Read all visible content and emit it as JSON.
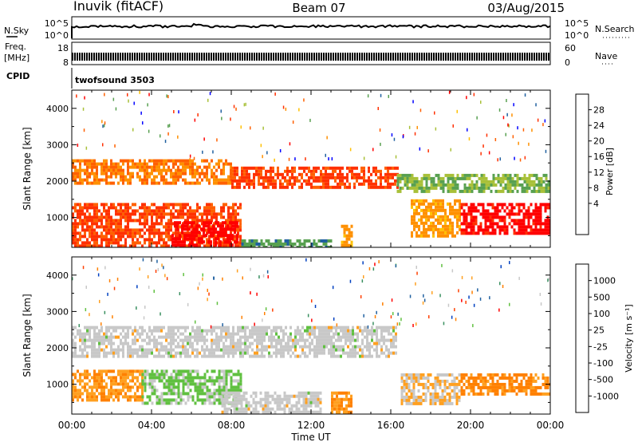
{
  "header": {
    "site": "Inuvik (fitACF)",
    "beam": "Beam 07",
    "date": "03/Aug/2015"
  },
  "nsky_panel": {
    "label": "N.Sky",
    "left_ticks": [
      "10^5",
      "10^0"
    ],
    "right_ticks": [
      "10^5",
      "10^0"
    ],
    "right_label": "N.Search"
  },
  "freq_panel": {
    "label_top": "Freq.",
    "label_unit": "[MHz]",
    "left_ticks": [
      "18",
      "8"
    ],
    "right_ticks": [
      "60",
      "0"
    ],
    "right_label": "Nave"
  },
  "cpid_panel": {
    "label": "CPID",
    "program": "twofsound 3503"
  },
  "colorbar_power": {
    "title": "Power [dB]",
    "ticks": [
      "28",
      "24",
      "20",
      "16",
      "12",
      "8",
      "4"
    ],
    "colors": [
      "#ff0000",
      "#ff3000",
      "#ff6000",
      "#ff9000",
      "#ffc000",
      "#a8c038",
      "#58a050",
      "#2060a0",
      "#0000ff"
    ]
  },
  "colorbar_velocity": {
    "title": "Velocity [m s⁻¹]",
    "ticks": [
      "1000",
      "500",
      "100",
      "25",
      "-25",
      "-100",
      "-500",
      "-1000"
    ],
    "colors": [
      "#0040c0",
      "#2060a0",
      "#3a9060",
      "#60c040",
      "#c8c8c8",
      "#ffa020",
      "#ff8000",
      "#ff4000",
      "#ff0000"
    ]
  },
  "x_axis": {
    "label": "Time UT",
    "ticks": [
      "00:00",
      "04:00",
      "08:00",
      "12:00",
      "16:00",
      "20:00",
      "00:00"
    ]
  },
  "chart_data": [
    {
      "type": "heatmap",
      "title": "",
      "xlabel": "",
      "ylabel": "Slant Range [km]",
      "x_range_hours": [
        0,
        24
      ],
      "ylim": [
        180,
        4500
      ],
      "y_ticks": [
        "1000",
        "2000",
        "3000",
        "4000"
      ],
      "zlabel": "Power [dB]",
      "zlim": [
        0,
        30
      ],
      "regions": [
        {
          "t": [
            0.0,
            8.0
          ],
          "r": [
            1900,
            2600
          ],
          "v": 20
        },
        {
          "t": [
            8.0,
            16.3
          ],
          "r": [
            1800,
            2400
          ],
          "v": 24
        },
        {
          "t": [
            16.3,
            24.0
          ],
          "r": [
            1700,
            2200
          ],
          "v": 10
        },
        {
          "t": [
            0.0,
            8.5
          ],
          "r": [
            200,
            1400
          ],
          "v": 24
        },
        {
          "t": [
            5.0,
            8.3
          ],
          "r": [
            250,
            900
          ],
          "v": 29
        },
        {
          "t": [
            8.5,
            13.0
          ],
          "r": [
            200,
            400
          ],
          "v": 8
        },
        {
          "t": [
            13.5,
            14.0
          ],
          "r": [
            250,
            800
          ],
          "v": 18
        },
        {
          "t": [
            17.0,
            19.5
          ],
          "r": [
            500,
            1500
          ],
          "v": 18
        },
        {
          "t": [
            19.5,
            24.0
          ],
          "r": [
            600,
            1400
          ],
          "v": 28
        }
      ]
    },
    {
      "type": "heatmap",
      "title": "",
      "xlabel": "Time UT",
      "ylabel": "Slant Range [km]",
      "x_range_hours": [
        0,
        24
      ],
      "ylim": [
        180,
        4500
      ],
      "y_ticks": [
        "1000",
        "2000",
        "3000",
        "4000"
      ],
      "zlabel": "Velocity [m s-1]",
      "zlim": [
        -1000,
        1000
      ],
      "regions": [
        {
          "t": [
            0.0,
            16.3
          ],
          "r": [
            1800,
            2600
          ],
          "v": 0
        },
        {
          "t": [
            0.0,
            3.5
          ],
          "r": [
            600,
            1400
          ],
          "v": -300
        },
        {
          "t": [
            3.5,
            8.5
          ],
          "r": [
            500,
            1400
          ],
          "v": 150
        },
        {
          "t": [
            7.5,
            12.5
          ],
          "r": [
            250,
            800
          ],
          "v": 0
        },
        {
          "t": [
            13.0,
            14.0
          ],
          "r": [
            250,
            800
          ],
          "v": -300
        },
        {
          "t": [
            16.5,
            19.5
          ],
          "r": [
            500,
            1300
          ],
          "v": -100
        },
        {
          "t": [
            19.5,
            24.0
          ],
          "r": [
            700,
            1300
          ],
          "v": -400
        }
      ]
    }
  ]
}
